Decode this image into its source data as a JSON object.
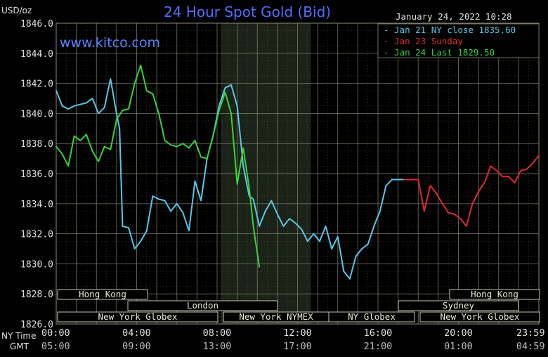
{
  "header": {
    "title": "24 Hour Spot Gold (Bid)",
    "unit": "USD/oz",
    "watermark": "www.kitco.com",
    "datetime": "January 24, 2022 10:28"
  },
  "legend": [
    {
      "label": "Jan 21 NY close 1835.60",
      "color": "#5cc6ea"
    },
    {
      "label": "Jan 23 Sunday",
      "color": "#e12a2a"
    },
    {
      "label": "Jan 24 Last 1829.50",
      "color": "#38d338"
    }
  ],
  "axis": {
    "row_labels": [
      "NY Time",
      "GMT"
    ],
    "ny_ticks": [
      "00:00",
      "04:00",
      "08:00",
      "12:00",
      "16:00",
      "20:00",
      "23:59"
    ],
    "gmt_ticks": [
      "05:00",
      "09:00",
      "13:00",
      "17:00",
      "21:00",
      "01:00",
      "04:59"
    ],
    "y_ticks": [
      "1846.0",
      "1844.0",
      "1842.0",
      "1840.0",
      "1838.0",
      "1836.0",
      "1834.0",
      "1832.0",
      "1830.0",
      "1828.0",
      "1826.0"
    ]
  },
  "sessions": [
    {
      "label": "Hong Kong"
    },
    {
      "label": "London"
    },
    {
      "label": "New York Globex"
    },
    {
      "label": "New York NYMEX"
    },
    {
      "label": "NY Globex"
    },
    {
      "label": "Hong Kong"
    },
    {
      "label": "Sydney"
    },
    {
      "label": "New York Globex"
    }
  ],
  "colors": {
    "background": "#000000",
    "grid": "#8a8a7a",
    "shade": "#1b2218",
    "title": "#4f6fff",
    "watermark": "#5c80ff",
    "text": "#e0e0e0",
    "session_fill": "#000000",
    "session_stroke": "#c8c8b4",
    "session_text": "#ebebd2"
  },
  "chart_data": {
    "type": "line",
    "title": "24 Hour Spot Gold (Bid)",
    "ylabel": "USD/oz",
    "x_unit": "hours (NY time)",
    "xlim": [
      0,
      24
    ],
    "ylim": [
      1826,
      1846
    ],
    "shaded_interval": [
      8.17,
      12.67
    ],
    "series": [
      {
        "name": "Jan 21 NY close 1835.60",
        "color": "#5cc6ea",
        "x": [
          0.0,
          0.3,
          0.6,
          0.9,
          1.2,
          1.5,
          1.8,
          2.1,
          2.4,
          2.7,
          3.0,
          3.15,
          3.3,
          3.6,
          3.9,
          4.2,
          4.5,
          4.8,
          5.1,
          5.4,
          5.7,
          6.0,
          6.3,
          6.6,
          6.9,
          7.2,
          7.5,
          7.8,
          8.1,
          8.4,
          8.7,
          9.0,
          9.3,
          9.6,
          9.8,
          10.1,
          10.4,
          10.7,
          11.0,
          11.3,
          11.6,
          11.9,
          12.2,
          12.5,
          12.8,
          13.1,
          13.4,
          13.7,
          14.0,
          14.3,
          14.6,
          14.9,
          15.2,
          15.5,
          15.8,
          16.1,
          16.4,
          16.7,
          17.0,
          17.3
        ],
        "y": [
          1841.5,
          1840.5,
          1840.3,
          1840.5,
          1840.6,
          1840.7,
          1841.0,
          1840.0,
          1840.4,
          1842.3,
          1840.0,
          1839.0,
          1832.5,
          1832.4,
          1831.0,
          1831.5,
          1832.2,
          1834.5,
          1834.3,
          1834.2,
          1833.5,
          1834.0,
          1833.4,
          1832.2,
          1835.5,
          1834.2,
          1837.0,
          1838.5,
          1840.5,
          1841.7,
          1841.9,
          1840.5,
          1836.5,
          1834.5,
          1834.3,
          1832.5,
          1833.5,
          1834.2,
          1833.3,
          1832.5,
          1833.0,
          1832.7,
          1832.3,
          1831.5,
          1832.0,
          1831.5,
          1832.5,
          1831.0,
          1831.8,
          1829.5,
          1829.0,
          1830.5,
          1831.0,
          1831.3,
          1832.5,
          1833.5,
          1835.2,
          1835.6,
          1835.6,
          1835.6
        ]
      },
      {
        "name": "Jan 23 Sunday",
        "color": "#e12a2a",
        "x": [
          17.3,
          18.0,
          18.3,
          18.6,
          18.9,
          19.2,
          19.5,
          19.8,
          20.1,
          20.4,
          20.7,
          21.0,
          21.3,
          21.6,
          21.9,
          22.2,
          22.5,
          22.8,
          23.1,
          23.4,
          23.7,
          24.0
        ],
        "y": [
          1835.6,
          1835.6,
          1833.5,
          1835.2,
          1834.7,
          1834.0,
          1833.4,
          1833.3,
          1833.0,
          1832.5,
          1834.0,
          1834.8,
          1835.4,
          1836.5,
          1836.2,
          1835.8,
          1835.8,
          1835.4,
          1836.2,
          1836.3,
          1836.7,
          1837.2
        ]
      },
      {
        "name": "Jan 24 Last 1829.50",
        "color": "#38d338",
        "x": [
          0.0,
          0.3,
          0.6,
          0.9,
          1.2,
          1.5,
          1.8,
          2.1,
          2.4,
          2.7,
          3.0,
          3.3,
          3.6,
          3.9,
          4.2,
          4.5,
          4.8,
          5.1,
          5.4,
          5.7,
          6.0,
          6.3,
          6.6,
          6.9,
          7.2,
          7.5,
          7.8,
          8.1,
          8.4,
          8.7,
          9.0,
          9.3,
          9.6,
          9.8,
          10.1
        ],
        "y": [
          1837.8,
          1837.3,
          1836.5,
          1838.5,
          1838.2,
          1838.6,
          1837.5,
          1836.8,
          1837.8,
          1837.6,
          1839.6,
          1840.2,
          1840.3,
          1842.0,
          1843.2,
          1841.5,
          1841.3,
          1840.0,
          1838.2,
          1837.9,
          1837.8,
          1838.0,
          1837.7,
          1838.2,
          1837.1,
          1837.0,
          1838.5,
          1840.2,
          1841.4,
          1840.0,
          1835.3,
          1837.7,
          1835.0,
          1832.5,
          1829.8
        ]
      }
    ]
  }
}
